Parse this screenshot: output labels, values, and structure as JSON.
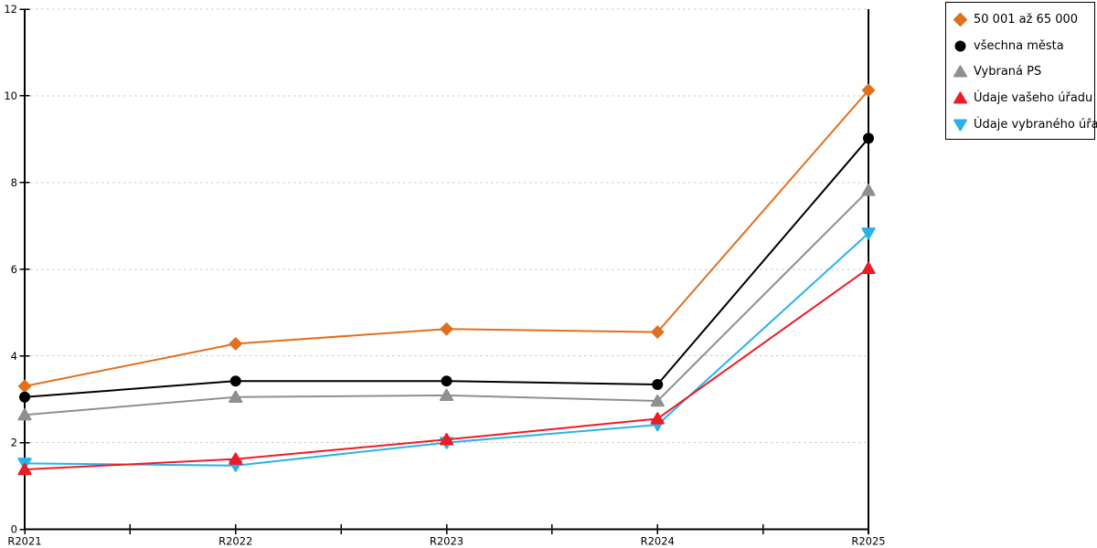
{
  "chart_data": {
    "type": "line",
    "title": "",
    "xlabel": "",
    "ylabel": "",
    "categories": [
      "R2021",
      "R2022",
      "R2023",
      "R2024",
      "R2025"
    ],
    "y_ticks": [
      0,
      2,
      4,
      6,
      8,
      10,
      12
    ],
    "ylim": [
      0,
      12
    ],
    "grid": "horizontal-dashed",
    "legend_position": "top-right-outside",
    "series": [
      {
        "name": "50 001 až 65 000",
        "marker": "diamond",
        "color": "#e07020",
        "values": [
          3.3,
          4.28,
          4.62,
          4.55,
          10.13
        ]
      },
      {
        "name": "všechna města",
        "marker": "circle",
        "color": "#000000",
        "values": [
          3.05,
          3.42,
          3.42,
          3.34,
          9.02
        ]
      },
      {
        "name": "Vybraná PS",
        "marker": "triangle-up",
        "color": "#8f8f8f",
        "values": [
          2.64,
          3.05,
          3.09,
          2.96,
          7.82
        ]
      },
      {
        "name": "Údaje vašeho úřadu",
        "marker": "triangle-up",
        "color": "#ed1c24",
        "values": [
          1.38,
          1.62,
          2.07,
          2.55,
          6.02
        ]
      },
      {
        "name": "Údaje vybraného úřadu",
        "marker": "triangle-down",
        "color": "#2ab2e8",
        "values": [
          1.52,
          1.47,
          2.0,
          2.41,
          6.83
        ]
      }
    ],
    "draw_order": [
      0,
      1,
      2,
      4,
      3
    ]
  },
  "colors": {
    "background": "#ffffff",
    "axis": "#000000",
    "gridline": "#c8c8c8",
    "tick_text": "#000000"
  }
}
